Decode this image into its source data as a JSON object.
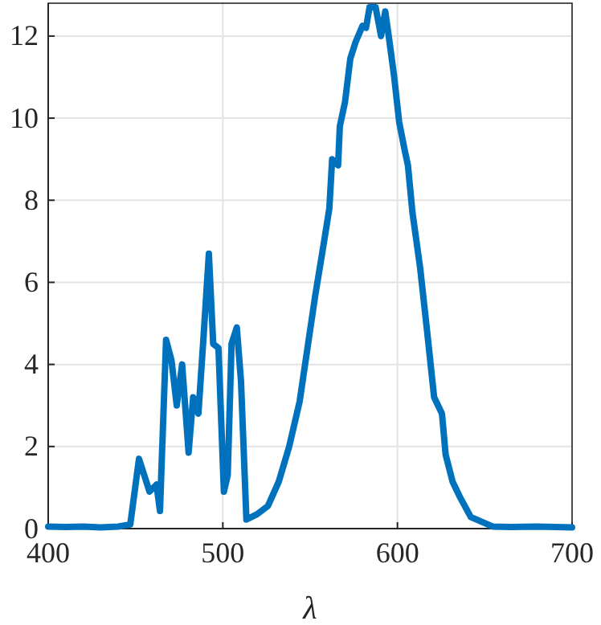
{
  "chart_data": {
    "type": "line",
    "xlabel": "λ",
    "xlim": [
      400,
      700
    ],
    "ylim": [
      0,
      12.8
    ],
    "xticks": [
      400,
      500,
      600,
      700
    ],
    "yticks": [
      0,
      2,
      4,
      6,
      8,
      10,
      12
    ],
    "grid": true,
    "series": [
      {
        "color": "#0072bd",
        "x": [
          400,
          410,
          420,
          430,
          440,
          447,
          452,
          458,
          462,
          464,
          467.5,
          470.6,
          473.6,
          476.7,
          480.4,
          483,
          486,
          489,
          492,
          494.5,
          497.5,
          500.6,
          502.8,
          505,
          508,
          510.4,
          513.5,
          519.6,
          525.8,
          532,
          538,
          544,
          549,
          553,
          558,
          561,
          562.6,
          566,
          567,
          570,
          573,
          576,
          580,
          582,
          584,
          587.5,
          590.6,
          593,
          595,
          598,
          601,
          604,
          606,
          608.6,
          613,
          617,
          621,
          625.5,
          627.6,
          631.6,
          636,
          642,
          654.5,
          665,
          680,
          700
        ],
        "values": [
          0.05,
          0.04,
          0.05,
          0.03,
          0.05,
          0.1,
          1.7,
          0.9,
          1.07,
          0.43,
          4.6,
          4.1,
          3.0,
          4.0,
          1.85,
          3.2,
          2.8,
          4.7,
          6.7,
          4.5,
          4.4,
          0.9,
          1.3,
          4.5,
          4.9,
          3.6,
          0.22,
          0.35,
          0.55,
          1.14,
          2.0,
          3.1,
          4.55,
          5.7,
          7.0,
          7.8,
          9.0,
          8.85,
          9.8,
          10.4,
          11.45,
          11.85,
          12.25,
          12.2,
          12.7,
          12.7,
          12.0,
          12.6,
          12.0,
          11.05,
          9.9,
          9.25,
          8.85,
          7.7,
          6.35,
          4.8,
          3.2,
          2.8,
          1.8,
          1.14,
          0.75,
          0.28,
          0.05,
          0.04,
          0.05,
          0.03
        ]
      }
    ]
  }
}
